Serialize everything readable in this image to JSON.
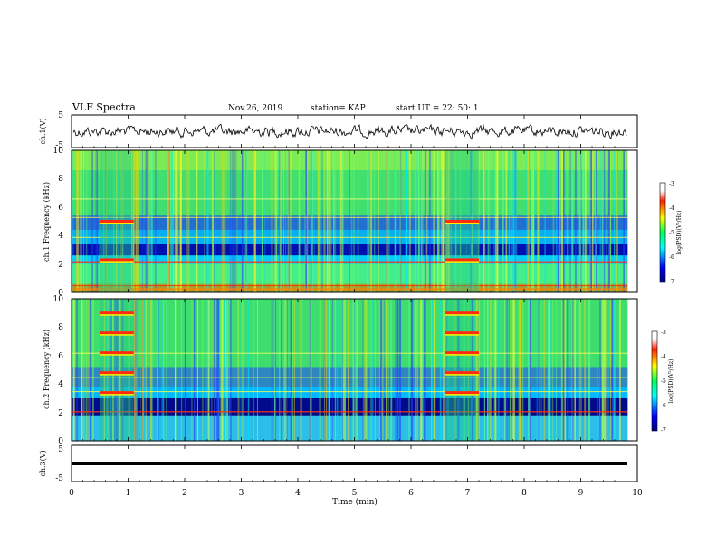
{
  "header": {
    "title": "VLF Spectra",
    "date": "Nov.26, 2019",
    "station": "station= KAP",
    "start_ut": "start  UT =   22: 50: 1"
  },
  "chart_data": [
    {
      "type": "line",
      "panel": "ch1-waveform",
      "ylabel": "ch.1(V)",
      "ylim": [
        -5,
        5
      ],
      "yticks": [
        "5",
        "-5"
      ],
      "xlim": [
        0,
        10
      ]
    },
    {
      "type": "heatmap",
      "panel": "ch1-spectrogram",
      "ylabel": "ch.1 Frequency (kHz)",
      "ylim": [
        0,
        10
      ],
      "yticks": [
        "0",
        "2",
        "4",
        "6",
        "8",
        "10"
      ],
      "xlim": [
        0,
        10
      ],
      "colorbar": {
        "label": "log(PSD)(V²/Hz)",
        "range": [
          -7,
          -3
        ],
        "ticks": [
          "-3",
          "-4",
          "-5",
          "-6",
          "-7"
        ]
      },
      "features": {
        "noisy_intervals_min": [
          [
            0.5,
            1.1
          ],
          [
            6.6,
            7.2
          ]
        ],
        "blue_band_khz": [
          2.6,
          3.4
        ]
      }
    },
    {
      "type": "heatmap",
      "panel": "ch2-spectrogram",
      "ylabel": "ch.2 Frequency (kHz)",
      "ylim": [
        0,
        10
      ],
      "yticks": [
        "0",
        "2",
        "4",
        "6",
        "8",
        "10"
      ],
      "xlim": [
        0,
        10
      ],
      "colorbar": {
        "label": "log(PSD)(V²/Hz)",
        "range": [
          -7,
          -3
        ],
        "ticks": [
          "-3",
          "-4",
          "-5",
          "-6",
          "-7"
        ]
      },
      "features": {
        "noisy_intervals_min": [
          [
            0.5,
            1.1
          ],
          [
            6.6,
            7.2
          ]
        ],
        "blue_band_khz": [
          2.0,
          3.0
        ]
      }
    },
    {
      "type": "line",
      "panel": "ch3-waveform",
      "ylabel": "ch.3(V)",
      "ylim": [
        -5,
        5
      ],
      "yticks": [
        "5",
        "-5"
      ],
      "xlim": [
        0,
        10
      ],
      "constant_value": -0.5
    }
  ],
  "xaxis": {
    "label": "Time  (min)",
    "ticks": [
      "0",
      "1",
      "2",
      "3",
      "4",
      "5",
      "6",
      "7",
      "8",
      "9",
      "10"
    ]
  }
}
